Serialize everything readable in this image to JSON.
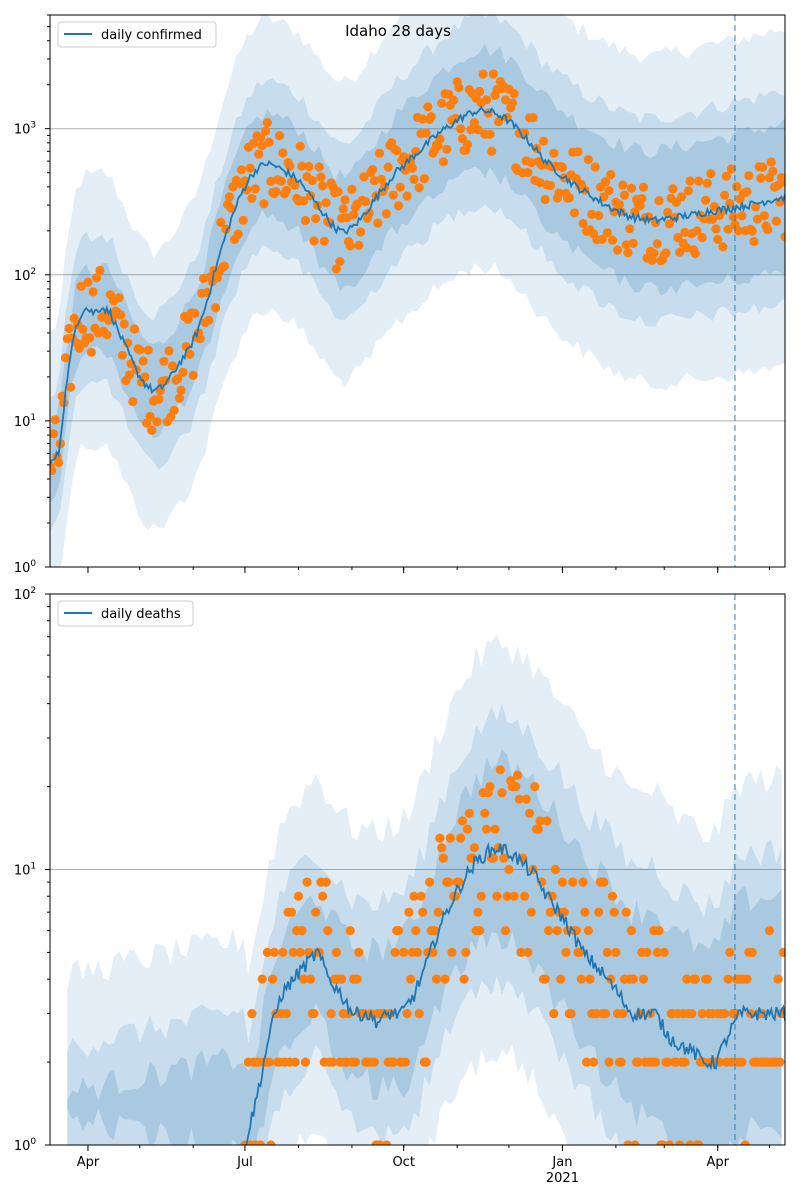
{
  "figure": {
    "title": "Idaho 28 days"
  },
  "colors": {
    "line": "#1f77b4",
    "band": "#1f77b4",
    "dots": "#ff7f0e",
    "grid": "#b0b0b0",
    "axis": "#000000"
  },
  "chart_data": [
    {
      "type": "line",
      "panel": "top",
      "legend": "daily confirmed",
      "legend_position": "top-left",
      "y_scale": "log",
      "ylim": [
        1,
        6000
      ],
      "xlim": [
        "2020-03-10",
        "2021-05-10"
      ],
      "grid": "horizontal at decades",
      "y_ticks": [
        {
          "value": 1,
          "base": "10",
          "exp": "0"
        },
        {
          "value": 10,
          "base": "10",
          "exp": "1"
        },
        {
          "value": 100,
          "base": "10",
          "exp": "2"
        },
        {
          "value": 1000,
          "base": "10",
          "exp": "3"
        }
      ],
      "vline": "2021-04-11",
      "series": [
        {
          "name": "daily confirmed",
          "points": [
            [
              "2020-03-10",
              5
            ],
            [
              "2020-03-15",
              6
            ],
            [
              "2020-03-20",
              20
            ],
            [
              "2020-03-25",
              45
            ],
            [
              "2020-03-30",
              60
            ],
            [
              "2020-04-04",
              55
            ],
            [
              "2020-04-09",
              60
            ],
            [
              "2020-04-14",
              55
            ],
            [
              "2020-04-19",
              40
            ],
            [
              "2020-04-24",
              30
            ],
            [
              "2020-04-29",
              22
            ],
            [
              "2020-05-04",
              18
            ],
            [
              "2020-05-09",
              16
            ],
            [
              "2020-05-14",
              17
            ],
            [
              "2020-05-19",
              20
            ],
            [
              "2020-05-24",
              25
            ],
            [
              "2020-05-29",
              30
            ],
            [
              "2020-06-03",
              40
            ],
            [
              "2020-06-08",
              60
            ],
            [
              "2020-06-13",
              100
            ],
            [
              "2020-06-18",
              160
            ],
            [
              "2020-06-23",
              240
            ],
            [
              "2020-06-28",
              340
            ],
            [
              "2020-07-03",
              450
            ],
            [
              "2020-07-08",
              530
            ],
            [
              "2020-07-13",
              580
            ],
            [
              "2020-07-18",
              560
            ],
            [
              "2020-07-23",
              520
            ],
            [
              "2020-07-28",
              480
            ],
            [
              "2020-08-02",
              430
            ],
            [
              "2020-08-07",
              360
            ],
            [
              "2020-08-12",
              300
            ],
            [
              "2020-08-17",
              250
            ],
            [
              "2020-08-22",
              210
            ],
            [
              "2020-08-27",
              195
            ],
            [
              "2020-09-01",
              210
            ],
            [
              "2020-09-06",
              240
            ],
            [
              "2020-09-11",
              290
            ],
            [
              "2020-09-16",
              350
            ],
            [
              "2020-09-21",
              420
            ],
            [
              "2020-09-26",
              500
            ],
            [
              "2020-10-01",
              560
            ],
            [
              "2020-10-06",
              640
            ],
            [
              "2020-10-11",
              720
            ],
            [
              "2020-10-16",
              820
            ],
            [
              "2020-10-21",
              920
            ],
            [
              "2020-10-26",
              1020
            ],
            [
              "2020-10-31",
              1120
            ],
            [
              "2020-11-05",
              1220
            ],
            [
              "2020-11-10",
              1300
            ],
            [
              "2020-11-15",
              1330
            ],
            [
              "2020-11-20",
              1310
            ],
            [
              "2020-11-25",
              1250
            ],
            [
              "2020-11-30",
              1150
            ],
            [
              "2020-12-05",
              1020
            ],
            [
              "2020-12-10",
              880
            ],
            [
              "2020-12-15",
              760
            ],
            [
              "2020-12-20",
              640
            ],
            [
              "2020-12-25",
              560
            ],
            [
              "2020-12-30",
              500
            ],
            [
              "2021-01-04",
              450
            ],
            [
              "2021-01-09",
              400
            ],
            [
              "2021-01-14",
              370
            ],
            [
              "2021-01-19",
              340
            ],
            [
              "2021-01-24",
              310
            ],
            [
              "2021-01-29",
              290
            ],
            [
              "2021-02-03",
              270
            ],
            [
              "2021-02-08",
              255
            ],
            [
              "2021-02-13",
              245
            ],
            [
              "2021-02-18",
              240
            ],
            [
              "2021-02-23",
              235
            ],
            [
              "2021-02-28",
              240
            ],
            [
              "2021-03-05",
              245
            ],
            [
              "2021-03-10",
              250
            ],
            [
              "2021-03-15",
              255
            ],
            [
              "2021-03-20",
              260
            ],
            [
              "2021-03-25",
              270
            ],
            [
              "2021-03-30",
              275
            ],
            [
              "2021-04-04",
              280
            ],
            [
              "2021-04-09",
              285
            ],
            [
              "2021-04-14",
              295
            ],
            [
              "2021-04-19",
              300
            ],
            [
              "2021-04-24",
              310
            ],
            [
              "2021-04-29",
              320
            ],
            [
              "2021-05-04",
              330
            ],
            [
              "2021-05-10",
              340
            ]
          ]
        }
      ]
    },
    {
      "type": "line",
      "panel": "bottom",
      "legend": "daily deaths",
      "legend_position": "top-left",
      "y_scale": "log",
      "ylim": [
        1,
        100
      ],
      "xlim": [
        "2020-03-10",
        "2021-05-10"
      ],
      "grid": "horizontal at decades",
      "y_ticks": [
        {
          "value": 1,
          "base": "10",
          "exp": "0"
        },
        {
          "value": 10,
          "base": "10",
          "exp": "1"
        },
        {
          "value": 100,
          "base": "10",
          "exp": "2"
        }
      ],
      "x_ticks": [
        {
          "date": "2020-04-01",
          "label": "Apr"
        },
        {
          "date": "2020-07-01",
          "label": "Jul"
        },
        {
          "date": "2020-10-01",
          "label": "Oct"
        },
        {
          "date": "2021-01-01",
          "label": "Jan"
        },
        {
          "date": "2021-04-01",
          "label": "Apr"
        }
      ],
      "x_year_label": {
        "date": "2021-01-01",
        "label": "2021"
      },
      "vline": "2021-04-11",
      "series": [
        {
          "name": "daily deaths",
          "points": [
            [
              "2020-07-01",
              1
            ],
            [
              "2020-07-08",
              1.5
            ],
            [
              "2020-07-15",
              2.5
            ],
            [
              "2020-07-22",
              3.5
            ],
            [
              "2020-07-29",
              4
            ],
            [
              "2020-08-05",
              4.5
            ],
            [
              "2020-08-12",
              5
            ],
            [
              "2020-08-19",
              4
            ],
            [
              "2020-08-26",
              3.5
            ],
            [
              "2020-09-02",
              3
            ],
            [
              "2020-09-09",
              3
            ],
            [
              "2020-09-16",
              2.8
            ],
            [
              "2020-09-23",
              3
            ],
            [
              "2020-09-30",
              3
            ],
            [
              "2020-10-07",
              3.5
            ],
            [
              "2020-10-14",
              4.5
            ],
            [
              "2020-10-21",
              6
            ],
            [
              "2020-10-28",
              7.5
            ],
            [
              "2020-11-04",
              9
            ],
            [
              "2020-11-11",
              10.5
            ],
            [
              "2020-11-18",
              11.5
            ],
            [
              "2020-11-25",
              12
            ],
            [
              "2020-12-02",
              11.5
            ],
            [
              "2020-12-09",
              10.5
            ],
            [
              "2020-12-16",
              9.5
            ],
            [
              "2020-12-23",
              8
            ],
            [
              "2020-12-30",
              7
            ],
            [
              "2021-01-06",
              6
            ],
            [
              "2021-01-13",
              5
            ],
            [
              "2021-01-20",
              4.5
            ],
            [
              "2021-01-27",
              4
            ],
            [
              "2021-02-03",
              3.5
            ],
            [
              "2021-02-10",
              3
            ],
            [
              "2021-02-17",
              3
            ],
            [
              "2021-02-24",
              3
            ],
            [
              "2021-03-03",
              2.5
            ],
            [
              "2021-03-10",
              2.3
            ],
            [
              "2021-03-17",
              2.2
            ],
            [
              "2021-03-24",
              2
            ],
            [
              "2021-03-31",
              2
            ],
            [
              "2021-04-07",
              2.5
            ],
            [
              "2021-04-14",
              3
            ],
            [
              "2021-04-21",
              3
            ],
            [
              "2021-04-28",
              3
            ],
            [
              "2021-05-05",
              3
            ],
            [
              "2021-05-10",
              3
            ]
          ]
        }
      ]
    }
  ]
}
